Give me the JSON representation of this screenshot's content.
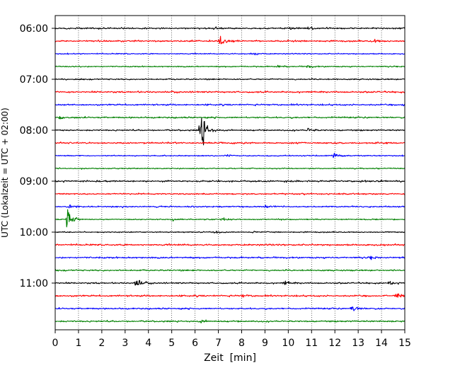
{
  "chart_data": {
    "type": "line",
    "title": "",
    "xlabel": "Zeit  [min]",
    "ylabel": "UTC (Lokalzeit = UTC + 02:00)",
    "xlim": [
      0,
      15
    ],
    "x_ticks": [
      0,
      1,
      2,
      3,
      4,
      5,
      6,
      7,
      8,
      9,
      10,
      11,
      12,
      13,
      14,
      15
    ],
    "y_tick_labels": [
      "06:00",
      "07:00",
      "08:00",
      "09:00",
      "10:00",
      "11:00"
    ],
    "trace_interval_min": 15,
    "grid": "vertical dotted lines at each minute",
    "legend": "none",
    "colors": [
      "#000000",
      "#ff0000",
      "#0000ff",
      "#008000"
    ],
    "rows": [
      {
        "start": "06:00",
        "color": "#000000",
        "events": [
          {
            "t": 6.8,
            "amp": 0.25
          },
          {
            "t": 10.0,
            "amp": 0.35
          },
          {
            "t": 10.8,
            "amp": 0.35
          }
        ]
      },
      {
        "start": "06:15",
        "color": "#ff0000",
        "events": [
          {
            "t": 7.0,
            "amp": 1.3
          },
          {
            "t": 13.6,
            "amp": 0.35
          }
        ]
      },
      {
        "start": "06:30",
        "color": "#0000ff",
        "events": [
          {
            "t": 8.4,
            "amp": 0.5
          }
        ]
      },
      {
        "start": "06:45",
        "color": "#008000",
        "events": [
          {
            "t": 9.5,
            "amp": 0.3
          },
          {
            "t": 10.8,
            "amp": 0.3
          }
        ]
      },
      {
        "start": "07:00",
        "color": "#000000",
        "events": []
      },
      {
        "start": "07:15",
        "color": "#ff0000",
        "events": []
      },
      {
        "start": "07:30",
        "color": "#0000ff",
        "events": [
          {
            "t": 14.9,
            "amp": 0.45
          }
        ]
      },
      {
        "start": "07:45",
        "color": "#008000",
        "events": [
          {
            "t": 0.2,
            "amp": 0.3
          }
        ]
      },
      {
        "start": "08:00",
        "color": "#000000",
        "events": [
          {
            "t": 6.2,
            "amp": 5.5
          },
          {
            "t": 10.8,
            "amp": 0.5
          }
        ]
      },
      {
        "start": "08:15",
        "color": "#ff0000",
        "events": []
      },
      {
        "start": "08:30",
        "color": "#0000ff",
        "events": [
          {
            "t": 7.3,
            "amp": 0.3
          },
          {
            "t": 11.9,
            "amp": 0.6
          }
        ]
      },
      {
        "start": "08:45",
        "color": "#008000",
        "events": []
      },
      {
        "start": "09:00",
        "color": "#000000",
        "events": []
      },
      {
        "start": "09:15",
        "color": "#ff0000",
        "events": [
          {
            "t": 10.6,
            "amp": 0.3
          }
        ]
      },
      {
        "start": "09:30",
        "color": "#0000ff",
        "events": [
          {
            "t": 0.6,
            "amp": 0.6
          },
          {
            "t": 8.9,
            "amp": 0.3
          }
        ]
      },
      {
        "start": "09:45",
        "color": "#008000",
        "events": [
          {
            "t": 0.5,
            "amp": 3.2
          },
          {
            "t": 5.0,
            "amp": 0.4
          },
          {
            "t": 7.1,
            "amp": 0.4
          }
        ]
      },
      {
        "start": "10:00",
        "color": "#000000",
        "events": [
          {
            "t": 6.8,
            "amp": 0.3
          },
          {
            "t": 8.4,
            "amp": 0.3
          }
        ]
      },
      {
        "start": "10:15",
        "color": "#ff0000",
        "events": []
      },
      {
        "start": "10:30",
        "color": "#0000ff",
        "events": [
          {
            "t": 13.5,
            "amp": 0.35
          }
        ]
      },
      {
        "start": "10:45",
        "color": "#008000",
        "events": []
      },
      {
        "start": "11:00",
        "color": "#000000",
        "events": [
          {
            "t": 3.4,
            "amp": 1.3
          },
          {
            "t": 9.8,
            "amp": 0.5
          },
          {
            "t": 14.3,
            "amp": 0.3
          }
        ]
      },
      {
        "start": "11:15",
        "color": "#ff0000",
        "events": [
          {
            "t": 8.0,
            "amp": 0.3
          },
          {
            "t": 14.6,
            "amp": 0.6
          }
        ]
      },
      {
        "start": "11:30",
        "color": "#0000ff",
        "events": [
          {
            "t": 12.7,
            "amp": 0.8
          }
        ]
      },
      {
        "start": "11:45",
        "color": "#008000",
        "events": [
          {
            "t": 6.2,
            "amp": 0.35
          }
        ]
      }
    ]
  }
}
